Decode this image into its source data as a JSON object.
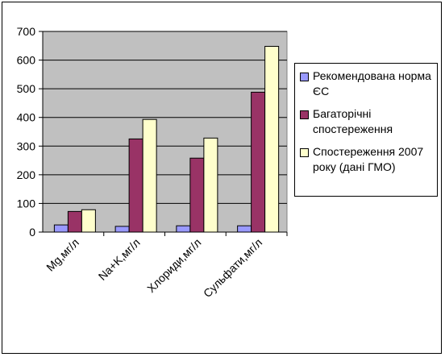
{
  "chart_data": {
    "type": "bar",
    "categories": [
      "Mg,мг/л",
      "Na+K,мг/л",
      "Хлориди,мг/л",
      "Сульфати,мг/л"
    ],
    "series": [
      {
        "name": "Рекомендована норма ЄС",
        "color": "#9999ff",
        "values": [
          25,
          20,
          22,
          22
        ]
      },
      {
        "name": "Багаторічні спостереження",
        "color": "#993366",
        "values": [
          72,
          325,
          258,
          488
        ]
      },
      {
        "name": "Спостереження 2007 року (дані ГМО)",
        "color": "#ffffcc",
        "values": [
          78,
          393,
          328,
          648
        ]
      }
    ],
    "ylim": [
      0,
      700
    ],
    "yticks": [
      0,
      100,
      200,
      300,
      400,
      500,
      600,
      700
    ],
    "grid": true,
    "plot_background": "#c0c0c0",
    "legend": "right"
  }
}
